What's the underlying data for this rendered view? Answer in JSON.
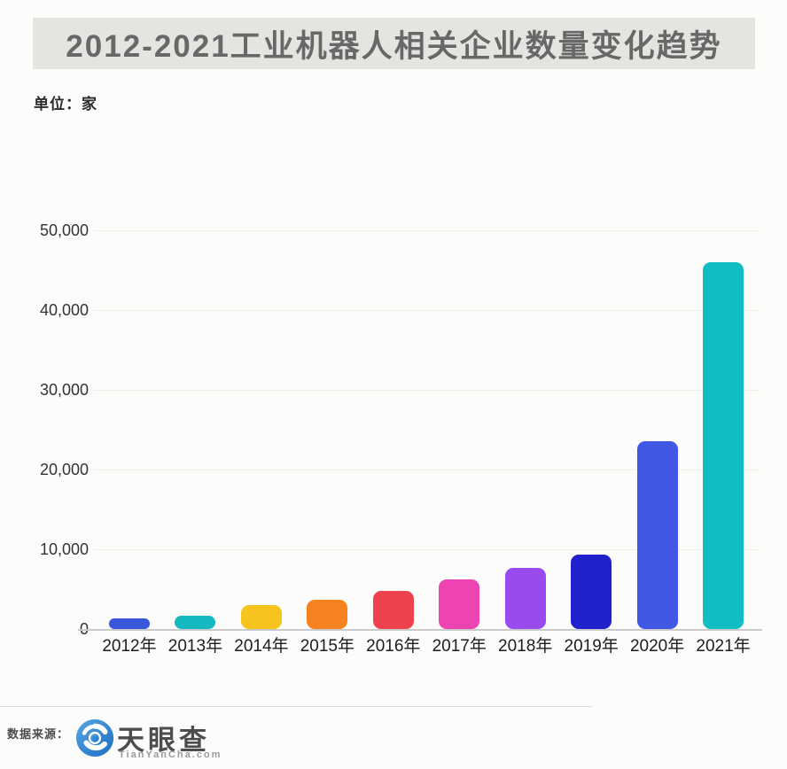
{
  "header": {
    "title": "2012-2021工业机器人相关企业数量变化趋势",
    "unit_label": "单位：家"
  },
  "chart_data": {
    "type": "bar",
    "title": "2012-2021工业机器人相关企业数量变化趋势",
    "xlabel": "",
    "ylabel": "单位：家",
    "categories": [
      "2012年",
      "2013年",
      "2014年",
      "2015年",
      "2016年",
      "2017年",
      "2018年",
      "2019年",
      "2020年",
      "2021年"
    ],
    "values": [
      1300,
      1700,
      3000,
      3700,
      4800,
      6200,
      7700,
      9300,
      23600,
      46000
    ],
    "bar_colors": [
      "#3a56dd",
      "#14b9c0",
      "#f6c41d",
      "#f5821f",
      "#f0414e",
      "#ee44b1",
      "#9a4bf0",
      "#2121cb",
      "#4157e6",
      "#10bdc2"
    ],
    "ylim": [
      0,
      50000
    ],
    "ytick_labels": [
      "0",
      "10,000",
      "20,000",
      "30,000",
      "40,000",
      "50,000"
    ],
    "grid": "faint horizontal gridlines at each y tick",
    "legend": "none"
  },
  "footer": {
    "source_label": "数据来源：",
    "logo_text": "天眼查",
    "logo_subtext": "TianYanCha.com",
    "logo_color": "#2e86d2"
  },
  "colors": {
    "banner_background": "#e5e4e1",
    "banner_text": "#686868",
    "axis_line": "#cacaca",
    "tick_text": "#333333",
    "xlabel_text": "#1d1d1d",
    "page_background": "#fcfcfb"
  }
}
